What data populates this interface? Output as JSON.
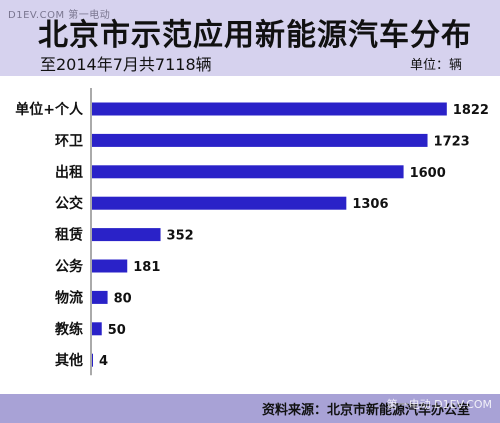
{
  "watermark_top": "D1EV.COM 第一电动",
  "watermark_bottom": "第一电动 D1EV.COM",
  "unit_label": "单位：辆",
  "source_label": "资料来源：北京市新能源汽车办公室",
  "colors": {
    "bar": "#2a22c8",
    "header": "#d6d2ee",
    "footer": "#a8a2d6"
  },
  "chart_data": {
    "type": "bar",
    "orientation": "horizontal",
    "title": "北京市示范应用新能源汽车分布",
    "subtitle": "至2014年7月共7118辆",
    "categories": [
      "单位+个人",
      "环卫",
      "出租",
      "公交",
      "租赁",
      "公务",
      "物流",
      "教练",
      "其他"
    ],
    "values": [
      1822,
      1723,
      1600,
      1306,
      352,
      181,
      80,
      50,
      4
    ],
    "xlim": [
      0,
      1900
    ],
    "grid": false,
    "legend": "none"
  }
}
